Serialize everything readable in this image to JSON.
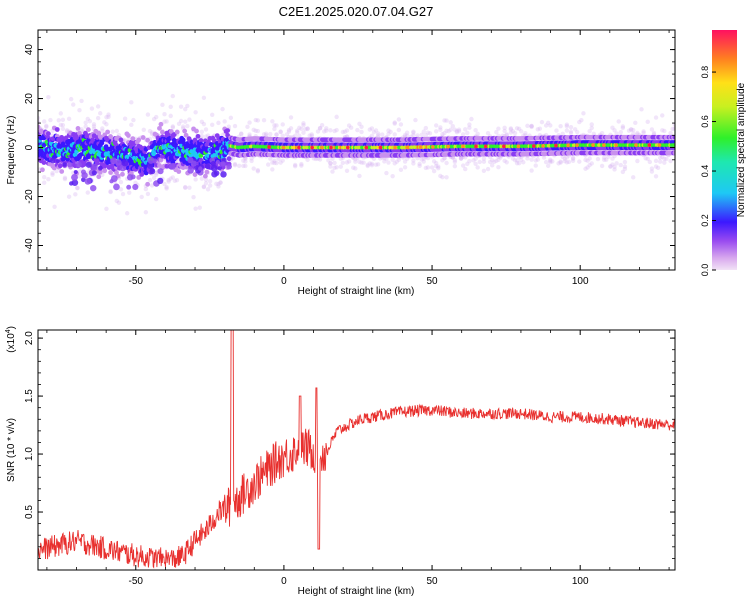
{
  "title": "C2E1.2025.020.07.04.G27",
  "chart_data": [
    {
      "type": "heatmap",
      "xlabel": "Height of straight line (km)",
      "ylabel": "Frequency (Hz)",
      "xlim": [
        -83,
        132
      ],
      "ylim": [
        -50,
        48
      ],
      "x_ticks": [
        -50,
        0,
        50,
        100
      ],
      "x_tick_labels": [
        "-50",
        "0",
        "50",
        "100"
      ],
      "y_ticks": [
        -40,
        -20,
        0,
        20,
        40
      ],
      "y_tick_labels": [
        "-40",
        "-20",
        "0",
        "20",
        "40"
      ],
      "colorbar": {
        "label": "Normalized spectral amplitude",
        "range": [
          0,
          0.97
        ],
        "ticks": [
          0.0,
          0.2,
          0.4,
          0.6,
          0.8
        ],
        "tick_labels": [
          "0.0",
          "0.2",
          "0.4",
          "0.6",
          "0.8"
        ]
      },
      "ridge": [
        {
          "x": -82,
          "y": 0.5
        },
        {
          "x": -75,
          "y": -1
        },
        {
          "x": -68,
          "y": -0.5
        },
        {
          "x": -62,
          "y": -2
        },
        {
          "x": -55,
          "y": -3
        },
        {
          "x": -50,
          "y": -4
        },
        {
          "x": -46,
          "y": -6
        },
        {
          "x": -42,
          "y": 0
        },
        {
          "x": -38,
          "y": -1
        },
        {
          "x": -32,
          "y": -2
        },
        {
          "x": -26,
          "y": -3
        },
        {
          "x": -22,
          "y": -2
        },
        {
          "x": -19,
          "y": 1
        },
        {
          "x": -15,
          "y": 0
        },
        {
          "x": -10,
          "y": 0.5
        },
        {
          "x": 0,
          "y": 0
        },
        {
          "x": 20,
          "y": 0
        },
        {
          "x": 40,
          "y": 0
        },
        {
          "x": 60,
          "y": 0.5
        },
        {
          "x": 80,
          "y": 0.5
        },
        {
          "x": 100,
          "y": 1
        },
        {
          "x": 120,
          "y": 1
        },
        {
          "x": 132,
          "y": 1
        }
      ]
    },
    {
      "type": "line",
      "xlabel": "Height of straight line (km)",
      "ylabel": "SNR (10 * v/v)",
      "scale_label": "(x10",
      "scale_exponent": "4",
      "scale_close": ")",
      "xlim": [
        -83,
        132
      ],
      "ylim": [
        0.0,
        2.07
      ],
      "x_ticks": [
        -50,
        0,
        50,
        100
      ],
      "x_tick_labels": [
        "-50",
        "0",
        "50",
        "100"
      ],
      "y_ticks": [
        0.5,
        1.0,
        1.5,
        2.0
      ],
      "y_tick_labels": [
        "0.5",
        "1.0",
        "1.5",
        "2.0"
      ],
      "line_color": "#e8302e",
      "series": [
        {
          "x": [
            -83,
            -70,
            -55,
            -45,
            -38,
            -34,
            -30,
            -26,
            -22,
            -18,
            -14,
            -10,
            -6,
            -2,
            2,
            5,
            8,
            11,
            14,
            18,
            22,
            26,
            30,
            36,
            42,
            50,
            60,
            70,
            80,
            90,
            100,
            110,
            120,
            132
          ],
          "y": [
            0.17,
            0.25,
            0.15,
            0.1,
            0.09,
            0.12,
            0.25,
            0.35,
            0.5,
            0.55,
            0.65,
            0.75,
            0.85,
            0.95,
            1.0,
            1.05,
            1.05,
            1.0,
            1.0,
            1.2,
            1.25,
            1.3,
            1.32,
            1.35,
            1.37,
            1.38,
            1.35,
            1.35,
            1.35,
            1.32,
            1.32,
            1.3,
            1.27,
            1.25
          ]
        }
      ]
    }
  ]
}
